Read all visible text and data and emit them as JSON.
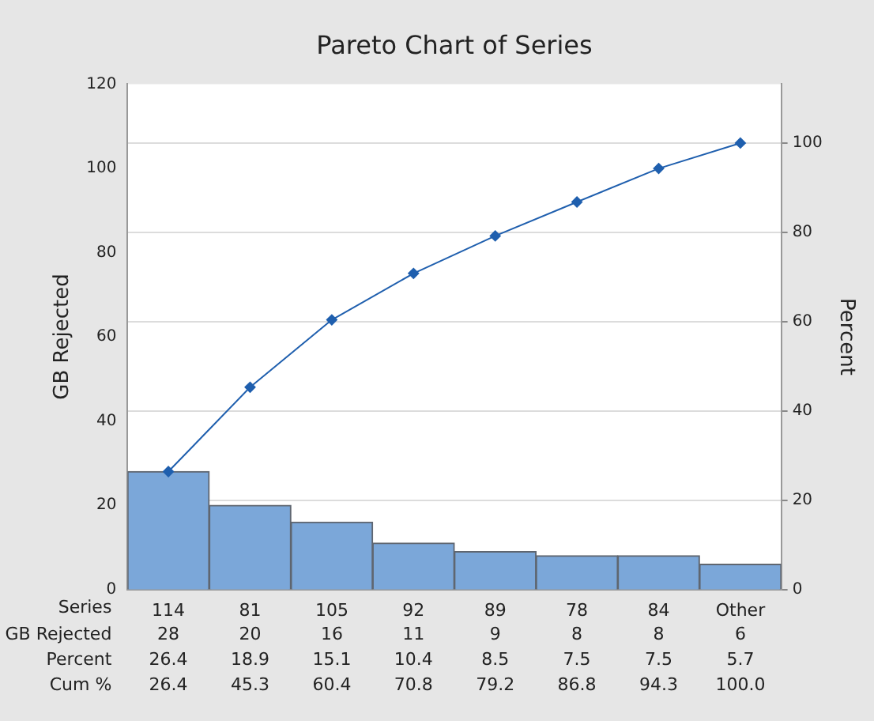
{
  "chart_data": {
    "type": "bar",
    "title": "Pareto Chart of Series",
    "xlabel": "Series",
    "ylabel": "GB Rejected",
    "y2label": "Percent",
    "categories": [
      "114",
      "81",
      "105",
      "92",
      "89",
      "78",
      "84",
      "Other"
    ],
    "series": [
      {
        "name": "GB Rejected",
        "color": "#7ba7d9",
        "values": [
          28,
          20,
          16,
          11,
          9,
          8,
          8,
          6
        ],
        "value_labels": [
          "28",
          "20",
          "16",
          "11",
          "9",
          "8",
          "8",
          "6"
        ]
      },
      {
        "type": "line",
        "axis": "y2",
        "color": "#1f5fae",
        "marker": "diamond",
        "values": [
          26.4,
          45.3,
          60.4,
          70.8,
          79.2,
          86.8,
          94.3,
          100.0
        ],
        "value_labels": [
          "26.4",
          "45.3",
          "60.4",
          "70.8",
          "79.2",
          "86.8",
          "94.3",
          "100.0"
        ]
      }
    ],
    "annotations": [
      "Percent",
      "26.4",
      "18.9",
      "15.1",
      "10.4",
      "8.5",
      "7.5",
      "7.5",
      "5.7",
      "Cum %"
    ],
    "ylim": [
      0,
      120
    ],
    "yticks": [
      0,
      20,
      40,
      60,
      80,
      100,
      120
    ],
    "y2lim": [
      0,
      113.2
    ],
    "y2ticks": [
      0,
      20,
      40,
      60,
      80,
      100
    ],
    "grid": "y2",
    "legend": false
  }
}
